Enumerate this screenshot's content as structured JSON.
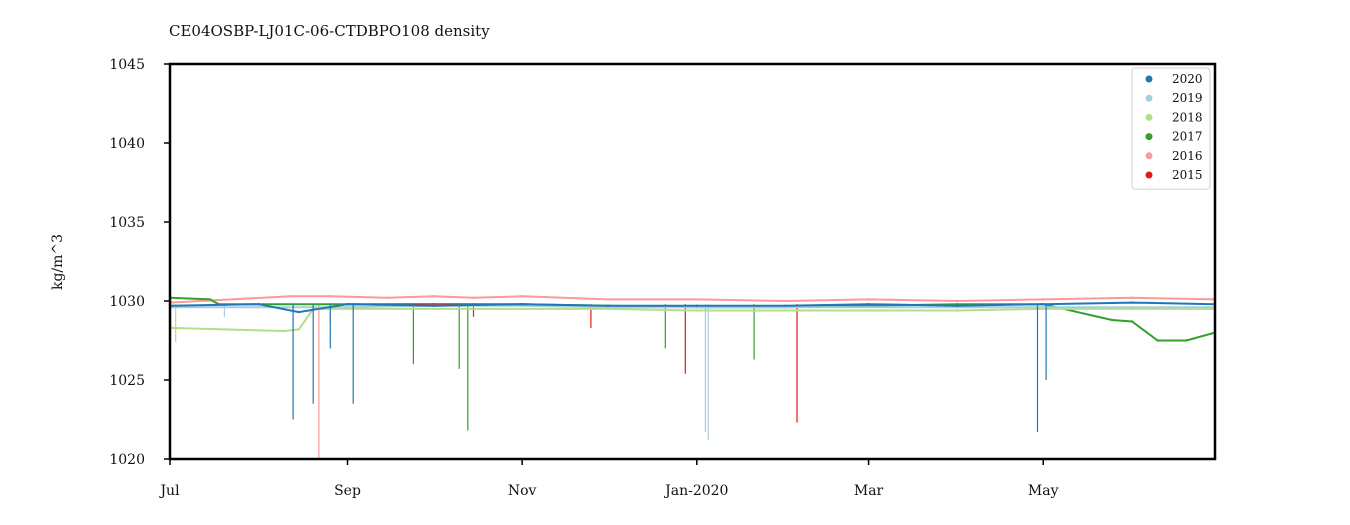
{
  "chart_data": {
    "type": "scatter",
    "title": "CE04OSBP-LJ01C-06-CTDBPO108 density",
    "xlabel": "",
    "ylabel": "kg/m^3",
    "xlim": [
      "2019-07-01",
      "2020-06-30"
    ],
    "ylim": [
      1020,
      1045
    ],
    "x_ticks": [
      {
        "label": "Jul",
        "date": "2019-07-01"
      },
      {
        "label": "Sep",
        "date": "2019-09-01"
      },
      {
        "label": "Nov",
        "date": "2019-11-01"
      },
      {
        "label": "Jan-2020",
        "date": "2020-01-01"
      },
      {
        "label": "Mar",
        "date": "2020-03-01"
      },
      {
        "label": "May",
        "date": "2020-05-01"
      }
    ],
    "y_ticks": [
      1020,
      1025,
      1030,
      1035,
      1040,
      1045
    ],
    "grid": false,
    "legend_position": "top-right",
    "series": [
      {
        "name": "2020",
        "color": "#1f78b4",
        "points": [
          [
            "2019-07-01",
            1029.7
          ],
          [
            "2019-08-01",
            1029.8
          ],
          [
            "2019-08-15",
            1029.3
          ],
          [
            "2019-09-01",
            1029.8
          ],
          [
            "2019-10-01",
            1029.7
          ],
          [
            "2019-11-01",
            1029.8
          ],
          [
            "2019-12-01",
            1029.7
          ],
          [
            "2020-01-01",
            1029.7
          ],
          [
            "2020-02-01",
            1029.7
          ],
          [
            "2020-03-01",
            1029.8
          ],
          [
            "2020-04-01",
            1029.7
          ],
          [
            "2020-05-01",
            1029.8
          ],
          [
            "2020-06-01",
            1029.9
          ],
          [
            "2020-06-30",
            1029.8
          ]
        ],
        "spikes": [
          [
            "2019-08-13",
            1022.5
          ],
          [
            "2019-08-20",
            1023.5
          ],
          [
            "2019-08-26",
            1027.0
          ],
          [
            "2019-09-03",
            1023.5
          ],
          [
            "2020-04-29",
            1021.7
          ],
          [
            "2020-05-02",
            1025.0
          ]
        ]
      },
      {
        "name": "2019",
        "color": "#a6cee3",
        "points": [
          [
            "2019-07-01",
            1029.6
          ],
          [
            "2019-08-01",
            1029.6
          ],
          [
            "2019-09-01",
            1029.6
          ],
          [
            "2019-10-01",
            1029.7
          ],
          [
            "2019-11-01",
            1029.7
          ],
          [
            "2019-12-01",
            1029.6
          ],
          [
            "2020-01-01",
            1029.6
          ],
          [
            "2020-02-01",
            1029.6
          ],
          [
            "2020-03-01",
            1029.6
          ],
          [
            "2020-04-01",
            1029.6
          ],
          [
            "2020-05-01",
            1029.6
          ],
          [
            "2020-06-01",
            1029.6
          ],
          [
            "2020-06-30",
            1029.6
          ]
        ],
        "spikes": [
          [
            "2020-01-04",
            1021.7
          ],
          [
            "2020-01-05",
            1021.2
          ],
          [
            "2019-07-20",
            1029.0
          ]
        ]
      },
      {
        "name": "2018",
        "color": "#b2df8a",
        "points": [
          [
            "2019-07-01",
            1028.3
          ],
          [
            "2019-07-20",
            1028.2
          ],
          [
            "2019-08-10",
            1028.1
          ],
          [
            "2019-08-15",
            1028.2
          ],
          [
            "2019-08-20",
            1029.5
          ],
          [
            "2019-09-01",
            1029.5
          ],
          [
            "2019-10-01",
            1029.5
          ],
          [
            "2019-11-01",
            1029.5
          ],
          [
            "2019-12-01",
            1029.5
          ],
          [
            "2020-01-01",
            1029.4
          ],
          [
            "2020-02-01",
            1029.4
          ],
          [
            "2020-03-01",
            1029.4
          ],
          [
            "2020-04-01",
            1029.4
          ],
          [
            "2020-05-01",
            1029.5
          ],
          [
            "2020-06-01",
            1029.5
          ],
          [
            "2020-06-30",
            1029.5
          ]
        ],
        "spikes": [
          [
            "2019-07-03",
            1027.4
          ]
        ]
      },
      {
        "name": "2017",
        "color": "#33a02c",
        "points": [
          [
            "2019-07-01",
            1030.2
          ],
          [
            "2019-07-15",
            1030.1
          ],
          [
            "2019-07-18",
            1029.8
          ],
          [
            "2019-08-01",
            1029.8
          ],
          [
            "2019-09-01",
            1029.8
          ],
          [
            "2019-10-01",
            1029.7
          ],
          [
            "2019-11-01",
            1029.8
          ],
          [
            "2019-12-01",
            1029.7
          ],
          [
            "2020-01-01",
            1029.6
          ],
          [
            "2020-02-01",
            1029.6
          ],
          [
            "2020-03-01",
            1029.7
          ],
          [
            "2020-04-01",
            1029.8
          ],
          [
            "2020-05-01",
            1029.8
          ],
          [
            "2020-05-25",
            1028.8
          ],
          [
            "2020-06-01",
            1028.7
          ],
          [
            "2020-06-10",
            1027.5
          ],
          [
            "2020-06-20",
            1027.5
          ],
          [
            "2020-06-30",
            1028.0
          ]
        ],
        "spikes": [
          [
            "2019-09-24",
            1026.0
          ],
          [
            "2019-10-10",
            1025.7
          ],
          [
            "2019-10-13",
            1021.8
          ],
          [
            "2019-12-21",
            1027.0
          ],
          [
            "2020-01-21",
            1026.3
          ]
        ]
      },
      {
        "name": "2016",
        "color": "#fb9a99",
        "points": [
          [
            "2019-07-01",
            1029.9
          ],
          [
            "2019-08-12",
            1030.3
          ],
          [
            "2019-08-26",
            1030.3
          ],
          [
            "2019-09-15",
            1030.2
          ],
          [
            "2019-10-01",
            1030.3
          ],
          [
            "2019-10-15",
            1030.2
          ],
          [
            "2019-11-01",
            1030.3
          ],
          [
            "2019-12-01",
            1030.1
          ],
          [
            "2020-01-01",
            1030.1
          ],
          [
            "2020-02-01",
            1030.0
          ],
          [
            "2020-03-01",
            1030.1
          ],
          [
            "2020-04-01",
            1030.0
          ],
          [
            "2020-05-01",
            1030.1
          ],
          [
            "2020-06-01",
            1030.2
          ],
          [
            "2020-06-30",
            1030.1
          ]
        ],
        "spikes": [
          [
            "2019-08-22",
            1020.0
          ],
          [
            "2019-08-26",
            1028.6
          ]
        ]
      },
      {
        "name": "2015",
        "color": "#e31a1c",
        "points": [
          [
            "2019-09-01",
            1029.8
          ],
          [
            "2019-10-01",
            1029.8
          ],
          [
            "2019-11-01",
            1029.8
          ],
          [
            "2019-11-20",
            1029.7
          ]
        ],
        "spikes": [
          [
            "2019-12-28",
            1025.4
          ],
          [
            "2020-02-05",
            1022.3
          ],
          [
            "2019-10-15",
            1029.0
          ],
          [
            "2019-11-25",
            1028.3
          ]
        ]
      }
    ]
  }
}
